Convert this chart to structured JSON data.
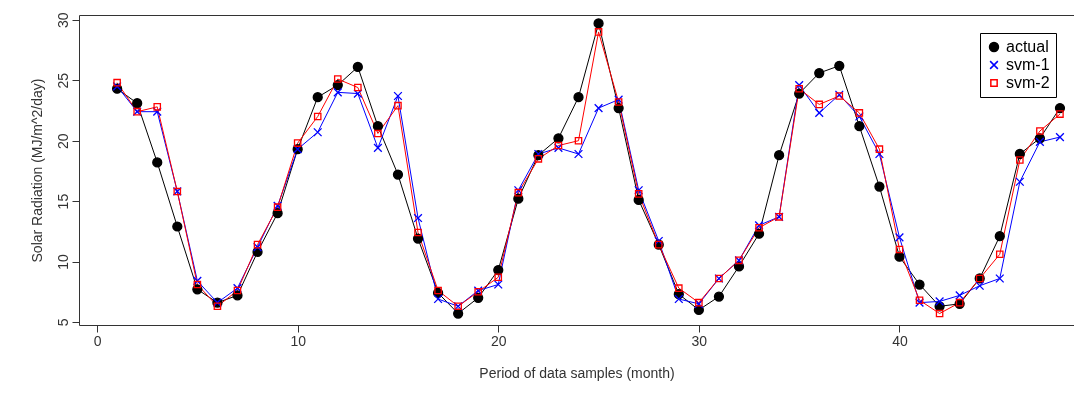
{
  "chart_data": {
    "type": "line",
    "xlabel": "Period of data samples (month)",
    "ylabel": "Solar Radiation (MJ/m^2/day)",
    "x": [
      1,
      2,
      3,
      4,
      5,
      6,
      7,
      8,
      9,
      10,
      11,
      12,
      13,
      14,
      15,
      16,
      17,
      18,
      19,
      20,
      21,
      22,
      23,
      24,
      25,
      26,
      27,
      28,
      29,
      30,
      31,
      32,
      33,
      34,
      35,
      36,
      37,
      38,
      39,
      40,
      41,
      42,
      43,
      44,
      45,
      46,
      47,
      48
    ],
    "series": [
      {
        "name": "actual",
        "color": "#000000",
        "marker": "circle",
        "values": [
          24.3,
          23.1,
          18.2,
          12.9,
          7.7,
          6.6,
          7.2,
          10.8,
          14.0,
          19.3,
          23.6,
          24.6,
          26.1,
          21.2,
          17.2,
          11.9,
          7.4,
          5.7,
          7.0,
          9.3,
          15.2,
          18.8,
          20.2,
          23.6,
          29.7,
          22.7,
          15.1,
          11.4,
          7.3,
          6.0,
          7.1,
          9.6,
          12.3,
          18.8,
          23.9,
          25.6,
          26.2,
          21.2,
          16.2,
          10.4,
          8.1,
          6.3,
          6.5,
          8.6,
          12.1,
          18.9,
          20.2,
          22.7
        ]
      },
      {
        "name": "svm-1",
        "color": "#0000ff",
        "marker": "cross",
        "values": [
          24.5,
          22.4,
          22.4,
          15.8,
          8.4,
          6.6,
          7.8,
          11.2,
          14.6,
          19.3,
          20.7,
          24.0,
          23.9,
          19.4,
          23.7,
          13.6,
          6.9,
          6.3,
          7.6,
          8.1,
          15.9,
          18.9,
          19.4,
          18.9,
          22.7,
          23.4,
          15.9,
          11.7,
          6.9,
          6.5,
          8.6,
          10.1,
          13.0,
          13.7,
          24.6,
          22.3,
          23.8,
          22.0,
          18.9,
          12.0,
          6.6,
          6.7,
          7.2,
          8.0,
          8.6,
          16.6,
          19.9,
          20.3
        ]
      },
      {
        "name": "svm-2",
        "color": "#ff0000",
        "marker": "square",
        "values": [
          24.8,
          22.4,
          22.8,
          15.8,
          8.1,
          6.3,
          7.6,
          11.4,
          14.5,
          19.8,
          22.0,
          25.1,
          24.4,
          20.6,
          22.9,
          12.4,
          7.6,
          6.3,
          7.5,
          8.7,
          15.7,
          18.5,
          19.6,
          20.0,
          29.0,
          23.2,
          15.6,
          11.4,
          7.8,
          6.6,
          8.6,
          10.1,
          12.8,
          13.7,
          24.3,
          23.0,
          23.7,
          22.3,
          19.3,
          11.0,
          6.8,
          5.7,
          6.6,
          8.6,
          10.6,
          18.4,
          20.8,
          22.2
        ]
      }
    ],
    "xlim": [
      -0.9,
      48.7
    ],
    "xticks": [
      0,
      10,
      20,
      30,
      40
    ],
    "ylim": [
      4.75,
      30.4
    ],
    "yticks": [
      5,
      10,
      15,
      20,
      25,
      30
    ],
    "grid": false,
    "legend": "top right",
    "line_style": "solid"
  }
}
